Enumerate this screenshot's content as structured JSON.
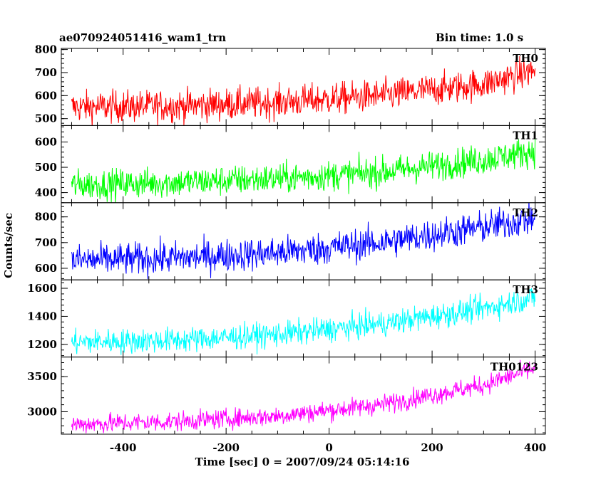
{
  "header": {
    "title": "ae070924051416_wam1_trn",
    "bin_time": "Bin time: 1.0 s"
  },
  "chart_data": {
    "type": "line",
    "title": "ae070924051416_wam1_trn",
    "subtitle": "Bin time: 1.0 s",
    "xlabel": "Time [sec] 0 = 2007/09/24 05:14:16",
    "ylabel": "Counts/sec",
    "xlim": [
      -520,
      420
    ],
    "x_ticks": [
      -400,
      -200,
      0,
      200,
      400
    ],
    "panels": [
      {
        "name": "TH0",
        "color": "#ff0000",
        "ylim": [
          470,
          805
        ],
        "y_ticks": [
          500,
          600,
          700,
          800
        ],
        "trend": [
          {
            "x": -500,
            "y": 550
          },
          {
            "x": -300,
            "y": 555
          },
          {
            "x": -100,
            "y": 570
          },
          {
            "x": 100,
            "y": 600
          },
          {
            "x": 300,
            "y": 650
          },
          {
            "x": 400,
            "y": 710
          }
        ],
        "noise": 35
      },
      {
        "name": "TH1",
        "color": "#00ff00",
        "ylim": [
          360,
          665
        ],
        "y_ticks": [
          400,
          500,
          600
        ],
        "trend": [
          {
            "x": -500,
            "y": 430
          },
          {
            "x": -300,
            "y": 440
          },
          {
            "x": -100,
            "y": 455
          },
          {
            "x": 100,
            "y": 480
          },
          {
            "x": 300,
            "y": 530
          },
          {
            "x": 400,
            "y": 565
          }
        ],
        "noise": 30
      },
      {
        "name": "TH2",
        "color": "#0000ff",
        "ylim": [
          555,
          855
        ],
        "y_ticks": [
          600,
          700,
          800
        ],
        "trend": [
          {
            "x": -500,
            "y": 630
          },
          {
            "x": -300,
            "y": 640
          },
          {
            "x": -100,
            "y": 660
          },
          {
            "x": 100,
            "y": 700
          },
          {
            "x": 300,
            "y": 760
          },
          {
            "x": 400,
            "y": 795
          }
        ],
        "noise": 32
      },
      {
        "name": "TH3",
        "color": "#00ffff",
        "ylim": [
          1110,
          1660
        ],
        "y_ticks": [
          1200,
          1400,
          1600
        ],
        "trend": [
          {
            "x": -500,
            "y": 1215
          },
          {
            "x": -300,
            "y": 1230
          },
          {
            "x": -100,
            "y": 1270
          },
          {
            "x": 100,
            "y": 1345
          },
          {
            "x": 300,
            "y": 1455
          },
          {
            "x": 400,
            "y": 1535
          }
        ],
        "noise": 45
      },
      {
        "name": "TH0123",
        "color": "#ff00ff",
        "ylim": [
          2680,
          3780
        ],
        "y_ticks": [
          3000,
          3500
        ],
        "trend": [
          {
            "x": -500,
            "y": 2820
          },
          {
            "x": -300,
            "y": 2860
          },
          {
            "x": -100,
            "y": 2940
          },
          {
            "x": 100,
            "y": 3100
          },
          {
            "x": 300,
            "y": 3380
          },
          {
            "x": 400,
            "y": 3620
          }
        ],
        "noise": 70
      }
    ]
  }
}
